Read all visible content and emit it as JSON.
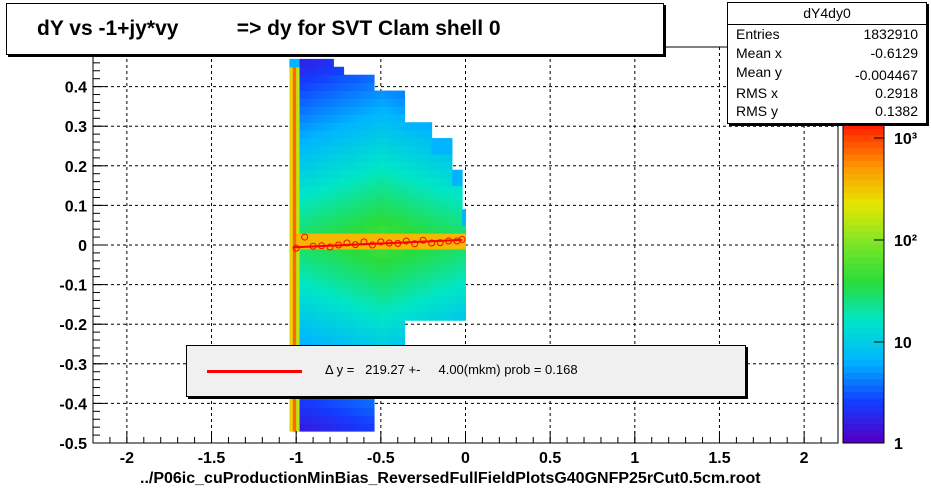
{
  "title": "dY vs -1+jy*vy          => dy for SVT Clam shell 0",
  "file_label": "../P06ic_cuProductionMinBias_ReversedFullFieldPlotsG40GNFP25rCut0.5cm.root",
  "stats": {
    "name": "dY4dy0",
    "rows": [
      {
        "label": "Entries",
        "value": "1832910"
      },
      {
        "label": "Mean x",
        "value": "-0.6129"
      },
      {
        "label": "Mean y",
        "value": "-0.004467"
      },
      {
        "label": "RMS x",
        "value": "0.2918"
      },
      {
        "label": "RMS y",
        "value": "0.1382"
      }
    ]
  },
  "legend": {
    "text": "Δ y =   219.27 +-     4.00(mkm) prob = 0.168",
    "line_color": "#ff0000"
  },
  "chart_data": {
    "type": "heatmap",
    "title": "dY vs -1+jy*vy          => dy for SVT Clam shell 0",
    "xlabel": "",
    "ylabel": "",
    "xlim": [
      -2.2,
      2.2
    ],
    "ylim": [
      -0.5,
      0.5
    ],
    "grid": true,
    "log_z": true,
    "x_ticks": [
      "-2",
      "-1.5",
      "-1",
      "-0.5",
      "0",
      "0.5",
      "1",
      "1.5",
      "2"
    ],
    "y_ticks": [
      "-0.5",
      "-0.4",
      "-0.3",
      "-0.2",
      "-0.1",
      "0",
      "0.1",
      "0.2",
      "0.3",
      "0.4"
    ],
    "z_ticks": [
      "1",
      "10",
      "10²",
      "10³"
    ],
    "fit_line": {
      "x": [
        -1.02,
        -0.02
      ],
      "y": [
        -0.006,
        0.013
      ],
      "color": "#ff0000"
    },
    "profile_points": {
      "x": [
        -1.0,
        -0.95,
        -0.9,
        -0.85,
        -0.8,
        -0.75,
        -0.7,
        -0.65,
        -0.6,
        -0.55,
        -0.5,
        -0.45,
        -0.4,
        -0.35,
        -0.3,
        -0.25,
        -0.2,
        -0.15,
        -0.1,
        -0.05,
        -0.02
      ],
      "y": [
        -0.008,
        0.02,
        -0.003,
        -0.002,
        -0.005,
        0.0,
        0.005,
        0.001,
        0.008,
        0.0,
        0.008,
        0.005,
        0.004,
        0.01,
        0.003,
        0.012,
        0.005,
        0.006,
        0.01,
        0.01,
        0.014
      ]
    }
  }
}
